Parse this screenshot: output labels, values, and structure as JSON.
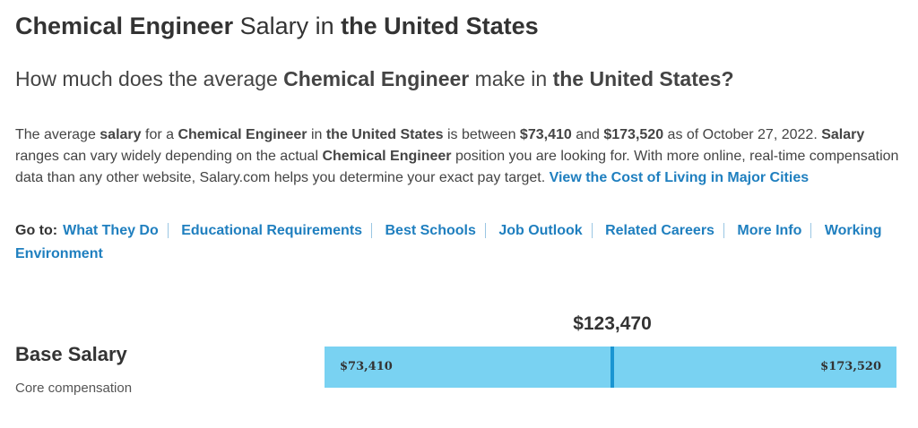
{
  "header": {
    "title": [
      {
        "text": "Chemical Engineer",
        "bold": true
      },
      {
        "text": " Salary in "
      },
      {
        "text": "the United States",
        "bold": true
      }
    ],
    "question": [
      {
        "text": "How much does the average "
      },
      {
        "text": "Chemical Engineer",
        "bold": true
      },
      {
        "text": " make in "
      },
      {
        "text": "the United States?",
        "bold": true
      }
    ]
  },
  "summary": [
    {
      "text": "The average "
    },
    {
      "text": "salary",
      "bold": true
    },
    {
      "text": " for a "
    },
    {
      "text": "Chemical Engineer",
      "bold": true
    },
    {
      "text": " in "
    },
    {
      "text": "the United States",
      "bold": true
    },
    {
      "text": " is between "
    },
    {
      "text": "$73,410",
      "bold": true
    },
    {
      "text": " and "
    },
    {
      "text": "$173,520",
      "bold": true
    },
    {
      "text": " as of October 27, 2022. "
    },
    {
      "text": "Salary",
      "bold": true
    },
    {
      "text": " ranges can vary widely depending on the actual "
    },
    {
      "text": "Chemical Engineer",
      "bold": true
    },
    {
      "text": " position you are looking for. With more online, real-time compensation data than any other website, Salary.com helps you determine your exact pay target. "
    },
    {
      "text": "View the Cost of Living in Major Cities",
      "link": true
    }
  ],
  "goto": {
    "label": "Go to:",
    "links": [
      "What They Do",
      "Educational Requirements",
      "Best Schools",
      "Job Outlook",
      "Related Careers",
      "More Info",
      "Working Environment"
    ]
  },
  "salary": {
    "title": "Base Salary",
    "subtitle": "Core compensation",
    "median": "$123,470",
    "min": "$73,410",
    "max": "$173,520"
  }
}
